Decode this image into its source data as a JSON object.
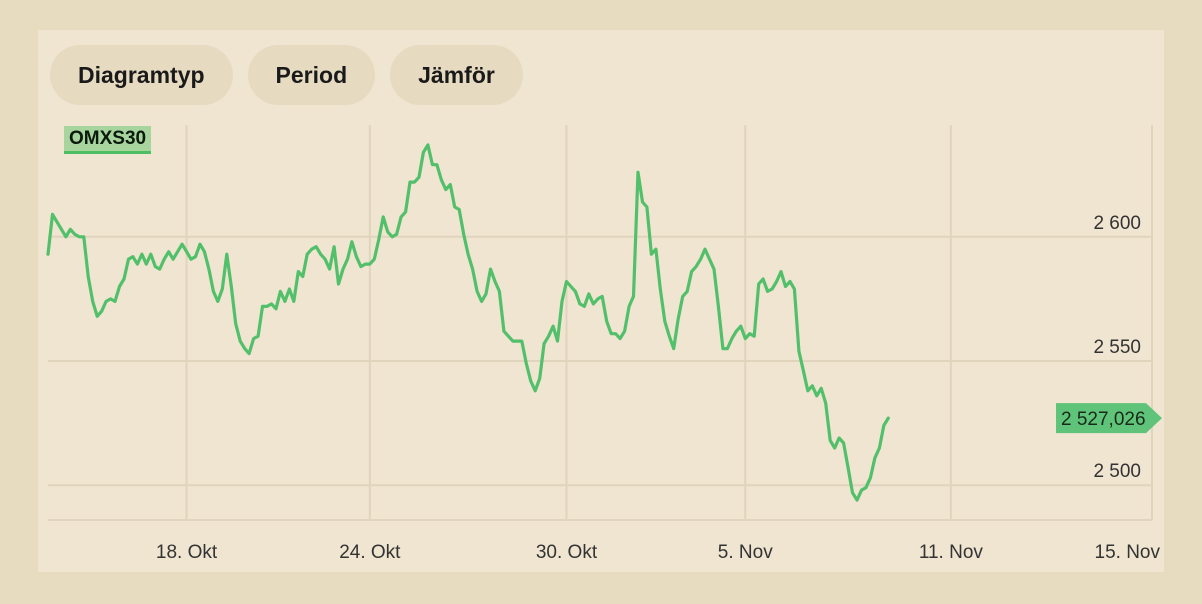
{
  "toolbar": {
    "chart_type_label": "Diagramtyp",
    "period_label": "Period",
    "compare_label": "Jämför"
  },
  "series_tag": "OMXS30",
  "colors": {
    "line": "#52c06a",
    "grid": "#e1d4bc",
    "tag_bg": "#a8d59e",
    "last_bg": "#5fc47a"
  },
  "chart_data": {
    "type": "line",
    "title": "",
    "series_name": "OMXS30",
    "ylim": [
      2486,
      2645
    ],
    "yticks": [
      {
        "value": 2500,
        "label": "2 500"
      },
      {
        "value": 2550,
        "label": "2 550"
      },
      {
        "value": 2600,
        "label": "2 600"
      }
    ],
    "xticks": [
      {
        "index": 31,
        "label": "18. Okt"
      },
      {
        "index": 72,
        "label": "24. Okt"
      },
      {
        "index": 116,
        "label": "30. Okt"
      },
      {
        "index": 156,
        "label": "5. Nov"
      },
      {
        "index": 202,
        "label": "11. Nov"
      },
      {
        "index": 247,
        "label": "15. Nov"
      }
    ],
    "last_value_label": "2 527,026",
    "last_value": 2527.026,
    "x_count": 248,
    "points": [
      [
        0,
        2593
      ],
      [
        1,
        2609
      ],
      [
        3,
        2603
      ],
      [
        4,
        2600
      ],
      [
        5,
        2603
      ],
      [
        6,
        2601
      ],
      [
        7,
        2600
      ],
      [
        8,
        2600
      ],
      [
        9,
        2584
      ],
      [
        10,
        2574
      ],
      [
        11,
        2568
      ],
      [
        12,
        2570
      ],
      [
        13,
        2574
      ],
      [
        14,
        2575
      ],
      [
        15,
        2574
      ],
      [
        16,
        2580
      ],
      [
        17,
        2583
      ],
      [
        18,
        2591
      ],
      [
        19,
        2592
      ],
      [
        20,
        2589
      ],
      [
        21,
        2593
      ],
      [
        22,
        2589
      ],
      [
        23,
        2593
      ],
      [
        24,
        2588
      ],
      [
        25,
        2587
      ],
      [
        26,
        2591
      ],
      [
        27,
        2594
      ],
      [
        28,
        2591
      ],
      [
        29,
        2594
      ],
      [
        30,
        2597
      ],
      [
        31,
        2594
      ],
      [
        32,
        2591
      ],
      [
        33,
        2592
      ],
      [
        34,
        2597
      ],
      [
        35,
        2594
      ],
      [
        36,
        2587
      ],
      [
        37,
        2578
      ],
      [
        38,
        2574
      ],
      [
        39,
        2579
      ],
      [
        40,
        2593
      ],
      [
        41,
        2580
      ],
      [
        42,
        2565
      ],
      [
        43,
        2558
      ],
      [
        44,
        2555
      ],
      [
        45,
        2553
      ],
      [
        46,
        2559
      ],
      [
        47,
        2560
      ],
      [
        48,
        2572
      ],
      [
        49,
        2572
      ],
      [
        50,
        2573
      ],
      [
        51,
        2571
      ],
      [
        52,
        2578
      ],
      [
        53,
        2574
      ],
      [
        54,
        2579
      ],
      [
        55,
        2574
      ],
      [
        56,
        2586
      ],
      [
        57,
        2584
      ],
      [
        58,
        2593
      ],
      [
        59,
        2595
      ],
      [
        60,
        2596
      ],
      [
        61,
        2593
      ],
      [
        62,
        2591
      ],
      [
        63,
        2587
      ],
      [
        64,
        2596
      ],
      [
        65,
        2581
      ],
      [
        66,
        2587
      ],
      [
        67,
        2591
      ],
      [
        68,
        2598
      ],
      [
        69,
        2592
      ],
      [
        70,
        2588
      ],
      [
        71,
        2589
      ],
      [
        72,
        2589
      ],
      [
        73,
        2591
      ],
      [
        74,
        2599
      ],
      [
        75,
        2608
      ],
      [
        76,
        2602
      ],
      [
        77,
        2600
      ],
      [
        78,
        2601
      ],
      [
        79,
        2608
      ],
      [
        80,
        2610
      ],
      [
        81,
        2622
      ],
      [
        82,
        2622
      ],
      [
        83,
        2624
      ],
      [
        84,
        2634
      ],
      [
        85,
        2637
      ],
      [
        86,
        2629
      ],
      [
        87,
        2629
      ],
      [
        88,
        2623
      ],
      [
        89,
        2619
      ],
      [
        90,
        2621
      ],
      [
        91,
        2612
      ],
      [
        92,
        2611
      ],
      [
        93,
        2601
      ],
      [
        94,
        2593
      ],
      [
        95,
        2587
      ],
      [
        96,
        2578
      ],
      [
        97,
        2574
      ],
      [
        98,
        2577
      ],
      [
        99,
        2587
      ],
      [
        100,
        2582
      ],
      [
        101,
        2578
      ],
      [
        102,
        2562
      ],
      [
        103,
        2560
      ],
      [
        104,
        2558
      ],
      [
        105,
        2558
      ],
      [
        106,
        2558
      ],
      [
        107,
        2549
      ],
      [
        108,
        2542
      ],
      [
        109,
        2538
      ],
      [
        110,
        2543
      ],
      [
        111,
        2557
      ],
      [
        112,
        2560
      ],
      [
        113,
        2564
      ],
      [
        114,
        2558
      ],
      [
        115,
        2574
      ],
      [
        116,
        2582
      ],
      [
        117,
        2580
      ],
      [
        118,
        2578
      ],
      [
        119,
        2573
      ],
      [
        120,
        2572
      ],
      [
        121,
        2577
      ],
      [
        122,
        2573
      ],
      [
        123,
        2575
      ],
      [
        124,
        2576
      ],
      [
        125,
        2566
      ],
      [
        126,
        2561
      ],
      [
        127,
        2561
      ],
      [
        128,
        2559
      ],
      [
        129,
        2562
      ],
      [
        130,
        2572
      ],
      [
        131,
        2576
      ],
      [
        132,
        2626
      ],
      [
        133,
        2614
      ],
      [
        134,
        2612
      ],
      [
        135,
        2593
      ],
      [
        136,
        2595
      ],
      [
        137,
        2579
      ],
      [
        138,
        2566
      ],
      [
        139,
        2560
      ],
      [
        140,
        2555
      ],
      [
        141,
        2567
      ],
      [
        142,
        2576
      ],
      [
        143,
        2578
      ],
      [
        144,
        2586
      ],
      [
        145,
        2588
      ],
      [
        146,
        2591
      ],
      [
        147,
        2595
      ],
      [
        148,
        2591
      ],
      [
        149,
        2587
      ],
      [
        150,
        2572
      ],
      [
        151,
        2555
      ],
      [
        152,
        2555
      ],
      [
        153,
        2559
      ],
      [
        154,
        2562
      ],
      [
        155,
        2564
      ],
      [
        156,
        2559
      ],
      [
        157,
        2561
      ],
      [
        158,
        2560
      ],
      [
        159,
        2581
      ],
      [
        160,
        2583
      ],
      [
        161,
        2578
      ],
      [
        162,
        2579
      ],
      [
        163,
        2582
      ],
      [
        164,
        2586
      ],
      [
        165,
        2580
      ],
      [
        166,
        2582
      ],
      [
        167,
        2579
      ],
      [
        168,
        2554
      ],
      [
        169,
        2546
      ],
      [
        170,
        2538
      ],
      [
        171,
        2540
      ],
      [
        172,
        2536
      ],
      [
        173,
        2539
      ],
      [
        174,
        2533
      ],
      [
        175,
        2518
      ],
      [
        176,
        2515
      ],
      [
        177,
        2519
      ],
      [
        178,
        2517
      ],
      [
        179,
        2507
      ],
      [
        180,
        2497
      ],
      [
        181,
        2494
      ],
      [
        182,
        2498
      ],
      [
        183,
        2499
      ],
      [
        184,
        2503
      ],
      [
        185,
        2511
      ],
      [
        186,
        2515
      ],
      [
        187,
        2524
      ],
      [
        188,
        2527
      ]
    ]
  }
}
